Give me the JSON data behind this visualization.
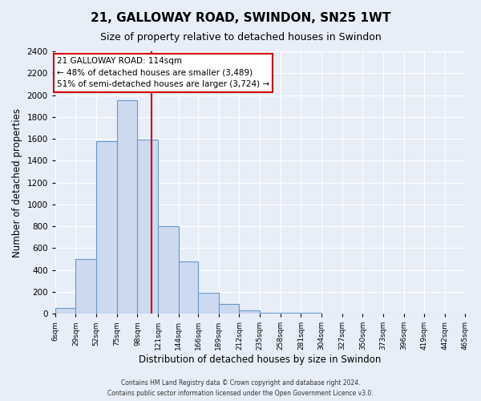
{
  "title": "21, GALLOWAY ROAD, SWINDON, SN25 1WT",
  "subtitle": "Size of property relative to detached houses in Swindon",
  "xlabel": "Distribution of detached houses by size in Swindon",
  "ylabel": "Number of detached properties",
  "bar_edges": [
    6,
    29,
    52,
    75,
    98,
    121,
    144,
    166,
    189,
    212,
    235,
    258,
    281,
    304,
    327,
    350,
    373,
    396,
    419,
    442,
    465
  ],
  "bar_heights": [
    50,
    500,
    1580,
    1950,
    1590,
    800,
    480,
    190,
    90,
    30,
    10,
    10,
    5,
    0,
    0,
    0,
    0,
    0,
    0,
    0
  ],
  "bar_color": "#ccd9ef",
  "bar_edge_color": "#6699cc",
  "property_size": 114,
  "vline_color": "#cc0000",
  "annotation_title": "21 GALLOWAY ROAD: 114sqm",
  "annotation_line1": "← 48% of detached houses are smaller (3,489)",
  "annotation_line2": "51% of semi-detached houses are larger (3,724) →",
  "annotation_box_edge": "#cc0000",
  "annotation_box_bg": "white",
  "ylim": [
    0,
    2400
  ],
  "yticks": [
    0,
    200,
    400,
    600,
    800,
    1000,
    1200,
    1400,
    1600,
    1800,
    2000,
    2200,
    2400
  ],
  "bg_color": "#e8eef8",
  "grid_color": "#ffffff",
  "footer1": "Contains HM Land Registry data © Crown copyright and database right 2024.",
  "footer2": "Contains public sector information licensed under the Open Government Licence v3.0."
}
